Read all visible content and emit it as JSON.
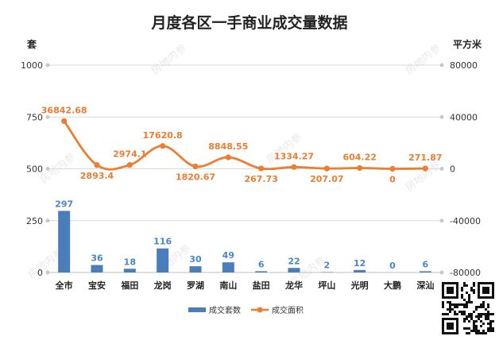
{
  "chart_data": {
    "type": "bar+line",
    "title": "月度各区一手商业成交量数据",
    "categories": [
      "全市",
      "宝安",
      "福田",
      "龙岗",
      "罗湖",
      "南山",
      "盐田",
      "龙华",
      "坪山",
      "光明",
      "大鹏",
      "深汕"
    ],
    "left_axis": {
      "unit": "套",
      "ylim": [
        0,
        1000
      ],
      "ticks": [
        0,
        250,
        500,
        750,
        1000
      ]
    },
    "right_axis": {
      "unit": "平方米",
      "ylim": [
        -80000,
        80000
      ],
      "ticks": [
        -80000,
        -40000,
        0,
        40000,
        80000
      ]
    },
    "series": [
      {
        "name": "成交套数",
        "type": "bar",
        "axis": "left",
        "color": "#4a7ebb",
        "values": [
          297,
          36,
          18,
          116,
          30,
          49,
          6,
          22,
          2,
          12,
          0,
          6
        ],
        "labels": [
          "297",
          "36",
          "18",
          "116",
          "30",
          "49",
          "6",
          "22",
          "2",
          "12",
          "0",
          "6"
        ]
      },
      {
        "name": "成交面积",
        "type": "line",
        "axis": "right",
        "color": "#ed7d31",
        "values": [
          36842.68,
          2893.4,
          2974.1,
          17620.8,
          1820.67,
          8848.55,
          267.73,
          1334.27,
          207.07,
          604.22,
          0,
          271.87
        ],
        "labels": [
          "36842.68",
          "2893.4",
          "2974.1",
          "17620.8",
          "1820.67",
          "8848.55",
          "267.73",
          "1334.27",
          "207.07",
          "604.22",
          "0",
          "271.87"
        ]
      }
    ],
    "grid": true,
    "legend_position": "bottom"
  },
  "watermark": "房地内参"
}
